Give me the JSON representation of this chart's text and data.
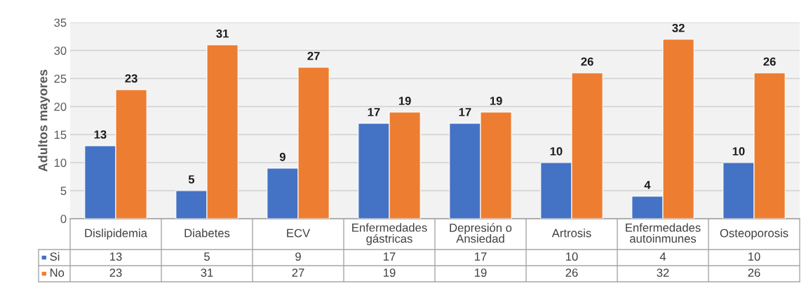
{
  "chart_data": {
    "type": "bar",
    "ylabel": "Adultos mayores",
    "categories": [
      "Dislipidemia",
      "Diabetes",
      "ECV",
      "Enfermedades\ngástricas",
      "Depresión o\nAnsiedad",
      "Artrosis",
      "Enfermedades\nautoinmunes",
      "Osteoporosis"
    ],
    "series": [
      {
        "name": "Si",
        "color": "#4472c4",
        "values": [
          13,
          5,
          9,
          17,
          17,
          10,
          4,
          10
        ],
        "value_labels": [
          "13",
          "5",
          "9",
          "17",
          "17",
          "10",
          "4",
          "10"
        ]
      },
      {
        "name": "No",
        "color": "#ed7d31",
        "values": [
          23,
          31,
          27,
          19,
          19,
          26,
          32,
          26
        ],
        "value_labels": [
          "23",
          "31",
          "27",
          "19",
          "19",
          "26",
          "32",
          "26"
        ]
      }
    ],
    "ylim": [
      0,
      35
    ],
    "yticks": [
      0,
      5,
      10,
      15,
      20,
      25,
      30,
      35
    ],
    "grid": "y",
    "legend": "bottom",
    "annotations": [
      "13",
      "5",
      "9",
      "17",
      "17",
      "10",
      "4",
      "10",
      "23",
      "31",
      "27",
      "19",
      "19",
      "26",
      "32",
      "26"
    ]
  }
}
